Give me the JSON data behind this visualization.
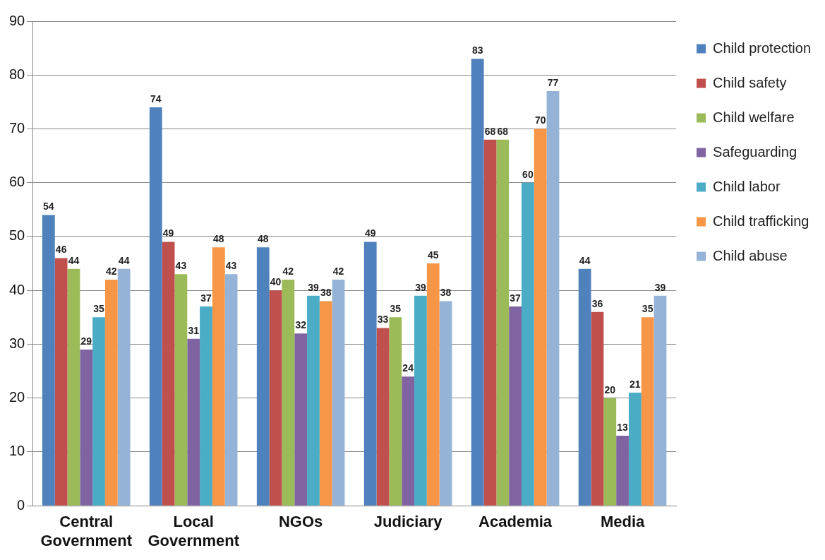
{
  "chart_data": {
    "type": "bar",
    "categories": [
      "Central Government",
      "Local Government",
      "NGOs",
      "Judiciary",
      "Academia",
      "Media"
    ],
    "series": [
      {
        "name": "Child protection",
        "color": "#4f81bd",
        "values": [
          54,
          74,
          48,
          49,
          83,
          44
        ]
      },
      {
        "name": "Child safety",
        "color": "#c0504d",
        "values": [
          46,
          49,
          40,
          33,
          68,
          36
        ]
      },
      {
        "name": "Child welfare",
        "color": "#9bbb59",
        "values": [
          44,
          43,
          42,
          35,
          68,
          20
        ]
      },
      {
        "name": "Safeguarding",
        "color": "#8064a2",
        "values": [
          29,
          31,
          32,
          24,
          37,
          13
        ]
      },
      {
        "name": "Child labor",
        "color": "#4bacc6",
        "values": [
          35,
          37,
          39,
          39,
          60,
          21
        ]
      },
      {
        "name": "Child trafficking",
        "color": "#f79646",
        "values": [
          42,
          48,
          38,
          45,
          70,
          35
        ]
      },
      {
        "name": "Child abuse",
        "color": "#95b3d7",
        "values": [
          44,
          43,
          42,
          38,
          77,
          39
        ]
      }
    ],
    "ylim": [
      0,
      90
    ],
    "yticks": [
      0,
      10,
      20,
      30,
      40,
      50,
      60,
      70,
      80,
      90
    ],
    "grid": "y",
    "legend": "right",
    "data_labels": true
  }
}
